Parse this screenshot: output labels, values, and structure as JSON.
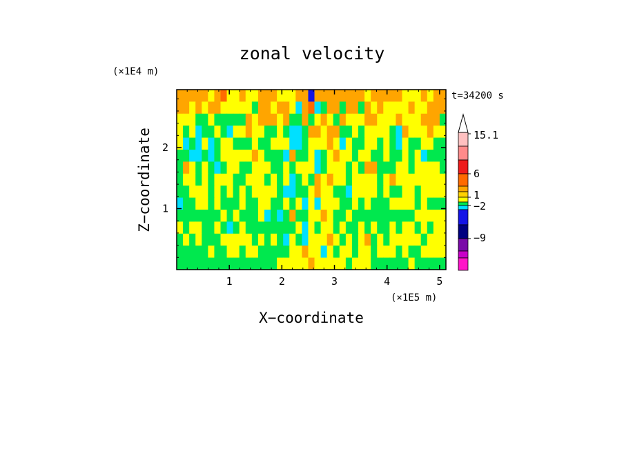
{
  "chart_data": {
    "type": "heatmap",
    "title": "zonal velocity",
    "xlabel": "X−coordinate",
    "ylabel": "Z−coordinate",
    "x_scale_label": "(×1E5 m)",
    "y_scale_label": "(×1E4 m)",
    "time_label": "t=34200 s",
    "xlim": [
      0,
      5.12
    ],
    "ylim": [
      0,
      2.95
    ],
    "x_ticks": [
      "1",
      "2",
      "3",
      "4",
      "5"
    ],
    "x_tick_values": [
      1,
      2,
      3,
      4,
      5
    ],
    "y_ticks": [
      "1",
      "2"
    ],
    "y_tick_values": [
      1,
      2
    ],
    "colorbar": {
      "tick_labels": [
        "15.1",
        "6",
        "1",
        "−2",
        "−9"
      ],
      "tick_values": [
        15.1,
        6,
        1,
        -2,
        -9
      ],
      "levels": [
        {
          "min": 12,
          "max": 15.1,
          "color": "#ffc0c0"
        },
        {
          "min": 9,
          "max": 12,
          "color": "#ff8a8a"
        },
        {
          "min": 6,
          "max": 9,
          "color": "#ee1c1c"
        },
        {
          "min": 3,
          "max": 6,
          "color": "#ff6a00"
        },
        {
          "min": 2,
          "max": 3,
          "color": "#ffa500"
        },
        {
          "min": 1,
          "max": 2,
          "color": "#ffd200"
        },
        {
          "min": 0,
          "max": 1,
          "color": "#ffff00"
        },
        {
          "min": -1,
          "max": 0,
          "color": "#00e84e"
        },
        {
          "min": -2,
          "max": -1,
          "color": "#00e0ff"
        },
        {
          "min": -5,
          "max": -2,
          "color": "#1414e6"
        },
        {
          "min": -7,
          "max": -5,
          "color": "#000080"
        },
        {
          "min": -9,
          "max": -7,
          "color": "#7a0aa8"
        },
        {
          "min": -12,
          "max": -9,
          "color": "#c800c8"
        },
        {
          "min": -15,
          "max": -12,
          "color": "#ff14c8"
        }
      ]
    },
    "field_rows": [
      "3333323422322333222336333333332333332223233",
      "3323233222221332332034013313313232222322333",
      "2221121111132333231131232132223322232223331",
      "2120112102232211210013323311212222103222322",
      "2010201221112112220012223202112212102112211",
      "1100101222223211103112012322122112112120111",
      "1321210122112221121222012221213311122122221",
      "1221212221122212120121323221222212322222222",
      "1122212121212222100112322110222212112212222",
      "0112212111211221121202022211212111222212111",
      "1111111212111201013112232112111111111122222",
      "2122112101211111111202122121121211212212122",
      "1212111222221212102102223212123121222221222",
      "1111121122122111112232202122122122212112222",
      "1111111111111111222223222221222111111211111"
    ]
  }
}
